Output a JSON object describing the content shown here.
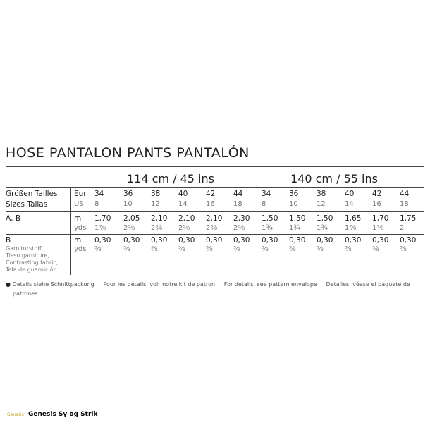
{
  "title": "HOSE   PANTALON   PANTS   PANTALÓN",
  "widths": [
    "114 cm / 45 ins",
    "140 cm / 55 ins"
  ],
  "labels": {
    "sizes_de_fr": "Größen Tailles",
    "sizes_en_es": "Sizes Tallas",
    "eur": "Eur",
    "us": "US",
    "ab": "A, B",
    "m": "m",
    "yds": "yds",
    "b": "B",
    "b_sub": [
      "Garniturstoff,",
      "Tissu garniture,",
      "Contrasting fabric,",
      "Tela de guarnición"
    ]
  },
  "eur": [
    "34",
    "36",
    "38",
    "40",
    "42",
    "44",
    "34",
    "36",
    "38",
    "40",
    "42",
    "44"
  ],
  "us": [
    "8",
    "10",
    "12",
    "14",
    "16",
    "18",
    "8",
    "10",
    "12",
    "14",
    "16",
    "18"
  ],
  "ab_m": [
    "1,70",
    "2,05",
    "2,10",
    "2,10",
    "2,10",
    "2,30",
    "1,50",
    "1,50",
    "1,50",
    "1,65",
    "1,70",
    "1,75"
  ],
  "ab_yds": [
    "1⅞",
    "2⅜",
    "2⅜",
    "2⅜",
    "2⅜",
    "2⅝",
    "1¾",
    "1¾",
    "1¾",
    "1⅞",
    "1⅞",
    "2"
  ],
  "b_m": [
    "0,30",
    "0,30",
    "0,30",
    "0,30",
    "0,30",
    "0,30",
    "0,30",
    "0,30",
    "0,30",
    "0,30",
    "0,30",
    "0,30"
  ],
  "b_yds": [
    "⅜",
    "⅜",
    "⅜",
    "⅜",
    "⅜",
    "⅜",
    "⅜",
    "⅜",
    "⅜",
    "⅜",
    "⅜",
    "⅜"
  ],
  "footnote": [
    "Details siehe Schnittpackung",
    "Pour les détails, voir notre kit de patron",
    "For details, see pattern envelope",
    "Detalles, véase el paquete de",
    "patrones"
  ],
  "brand": {
    "logo": "Genesis",
    "name": "Genesis Sy og Strik"
  }
}
